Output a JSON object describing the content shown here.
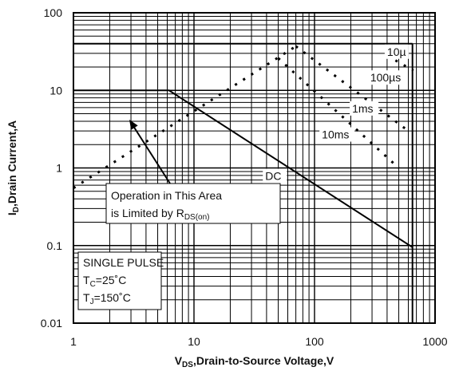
{
  "chart_data": {
    "type": "line",
    "x_scale": "log",
    "y_scale": "log",
    "xlim": [
      1,
      1000
    ],
    "ylim": [
      0.01,
      100
    ],
    "grid": true,
    "x_ticks": [
      "1",
      "10",
      "100",
      "1000"
    ],
    "y_ticks": [
      "100",
      "10",
      "1",
      "0.1",
      "0.01"
    ],
    "xlabel": {
      "pre": "V",
      "sub": "DS",
      "post": ",Drain-to-Source Voltage,V"
    },
    "ylabel": {
      "pre": "I",
      "sub": "D",
      "post": ",Drain Current,A"
    },
    "series": [
      {
        "name": "DC",
        "style": "solid",
        "points": [
          [
            1,
            10
          ],
          [
            6.2,
            10
          ],
          [
            650,
            0.095
          ]
        ]
      },
      {
        "name": "R_DS(on) limit",
        "style": "dotted",
        "points": [
          [
            1,
            0.55
          ],
          [
            70,
            37
          ]
        ]
      },
      {
        "name": "10ms",
        "style": "dotted",
        "points": [
          [
            50,
            26
          ],
          [
            500,
            1.0
          ]
        ]
      },
      {
        "name": "1ms",
        "style": "dotted",
        "points": [
          [
            70,
            37
          ],
          [
            600,
            3.0
          ]
        ]
      },
      {
        "name": "100µs",
        "style": "dotted",
        "points": [
          [
            400,
            28
          ],
          [
            660,
            18
          ]
        ]
      },
      {
        "name": "current limit",
        "style": "solid",
        "points": [
          [
            1,
            40
          ],
          [
            650,
            40
          ]
        ]
      },
      {
        "name": "voltage limit",
        "style": "solid",
        "points": [
          [
            650,
            40
          ],
          [
            650,
            0.01
          ]
        ]
      }
    ],
    "annotations": {
      "tp_10": "10µ",
      "tp_100": "100µs",
      "tp_1ms": "1ms",
      "tp_10ms": "10ms",
      "dc": "DC",
      "operation_line1": "Operation in This Area",
      "operation_line2_pre": "is Limited by R",
      "operation_line2_sub": "DS(on)",
      "pulse_title": "SINGLE PULSE",
      "tc_pre": "T",
      "tc_sub": "C",
      "tc_post": "=25˚C",
      "tj_pre": "T",
      "tj_sub": "J",
      "tj_post": "=150˚C"
    }
  }
}
